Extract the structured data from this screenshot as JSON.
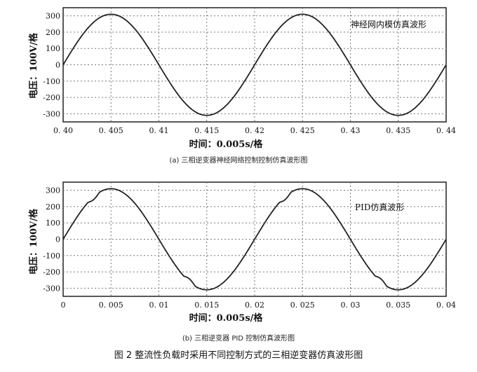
{
  "chart_data": [
    {
      "type": "line",
      "panel_label": "(a) 三相逆变器神经网络控制控制仿真波形图",
      "annotation": "神经网内模仿真波形",
      "xlabel": "时间：0.005s/格",
      "ylabel": "电压：100V/格",
      "xlim": [
        0.4,
        0.44
      ],
      "ylim": [
        -350,
        350
      ],
      "x_ticks": [
        "0. 40",
        "0. 405",
        "0. 41",
        "0. 415",
        "0. 42",
        "0. 425",
        "0. 43",
        "0. 435",
        "0. 44"
      ],
      "y_ticks": [
        "300",
        "200",
        "100",
        "0",
        "-100",
        "-200",
        "-300"
      ],
      "y_tick_values": [
        300,
        200,
        100,
        0,
        -100,
        -200,
        -300
      ],
      "grid": true,
      "series": [
        {
          "waveform": "sine",
          "amplitude": 310,
          "period": 0.02,
          "phase_start": 0.4,
          "points": [
            [
              0.4,
              0
            ],
            [
              0.4025,
              219
            ],
            [
              0.405,
              310
            ],
            [
              0.4075,
              219
            ],
            [
              0.41,
              0
            ],
            [
              0.4125,
              -219
            ],
            [
              0.415,
              -310
            ],
            [
              0.4175,
              -219
            ],
            [
              0.42,
              0
            ],
            [
              0.4225,
              219
            ],
            [
              0.425,
              310
            ],
            [
              0.4275,
              219
            ],
            [
              0.43,
              0
            ],
            [
              0.4325,
              -219
            ],
            [
              0.435,
              -310
            ],
            [
              0.4375,
              -219
            ],
            [
              0.44,
              0
            ]
          ]
        }
      ]
    },
    {
      "type": "line",
      "panel_label": "(b) 三相逆变器 PID 控制仿真波形图",
      "annotation": "PID仿真波形",
      "xlabel": "时间：0.005s/格",
      "ylabel": "电压：100V/格",
      "xlim": [
        0,
        0.04
      ],
      "ylim": [
        -350,
        350
      ],
      "x_ticks": [
        "0",
        "0. 005",
        "0. 01",
        "0. 015",
        "0. 02",
        "0. 025",
        "0. 03",
        "0. 035",
        "0. 04"
      ],
      "y_ticks": [
        "300",
        "200",
        "100",
        "0",
        "-100",
        "-200",
        "-300"
      ],
      "y_tick_values": [
        300,
        200,
        100,
        0,
        -100,
        -200,
        -300
      ],
      "grid": true,
      "series": [
        {
          "waveform": "sine-with-notches",
          "amplitude": 310,
          "period": 0.02,
          "phase_start": 0.0,
          "points": [
            [
              0.0,
              0
            ],
            [
              0.0025,
              219
            ],
            [
              0.005,
              310
            ],
            [
              0.0075,
              219
            ],
            [
              0.01,
              0
            ],
            [
              0.0125,
              -219
            ],
            [
              0.0132,
              -225
            ],
            [
              0.015,
              -300
            ],
            [
              0.0175,
              -219
            ],
            [
              0.02,
              0
            ],
            [
              0.0225,
              219
            ],
            [
              0.0232,
              225
            ],
            [
              0.025,
              310
            ],
            [
              0.0275,
              219
            ],
            [
              0.03,
              0
            ],
            [
              0.0325,
              -219
            ],
            [
              0.0332,
              -225
            ],
            [
              0.035,
              -300
            ],
            [
              0.0375,
              -219
            ],
            [
              0.04,
              0
            ]
          ]
        }
      ]
    }
  ],
  "figure_caption": "图 2  整流性负载时采用不同控制方式的三相逆变器仿真波形图"
}
